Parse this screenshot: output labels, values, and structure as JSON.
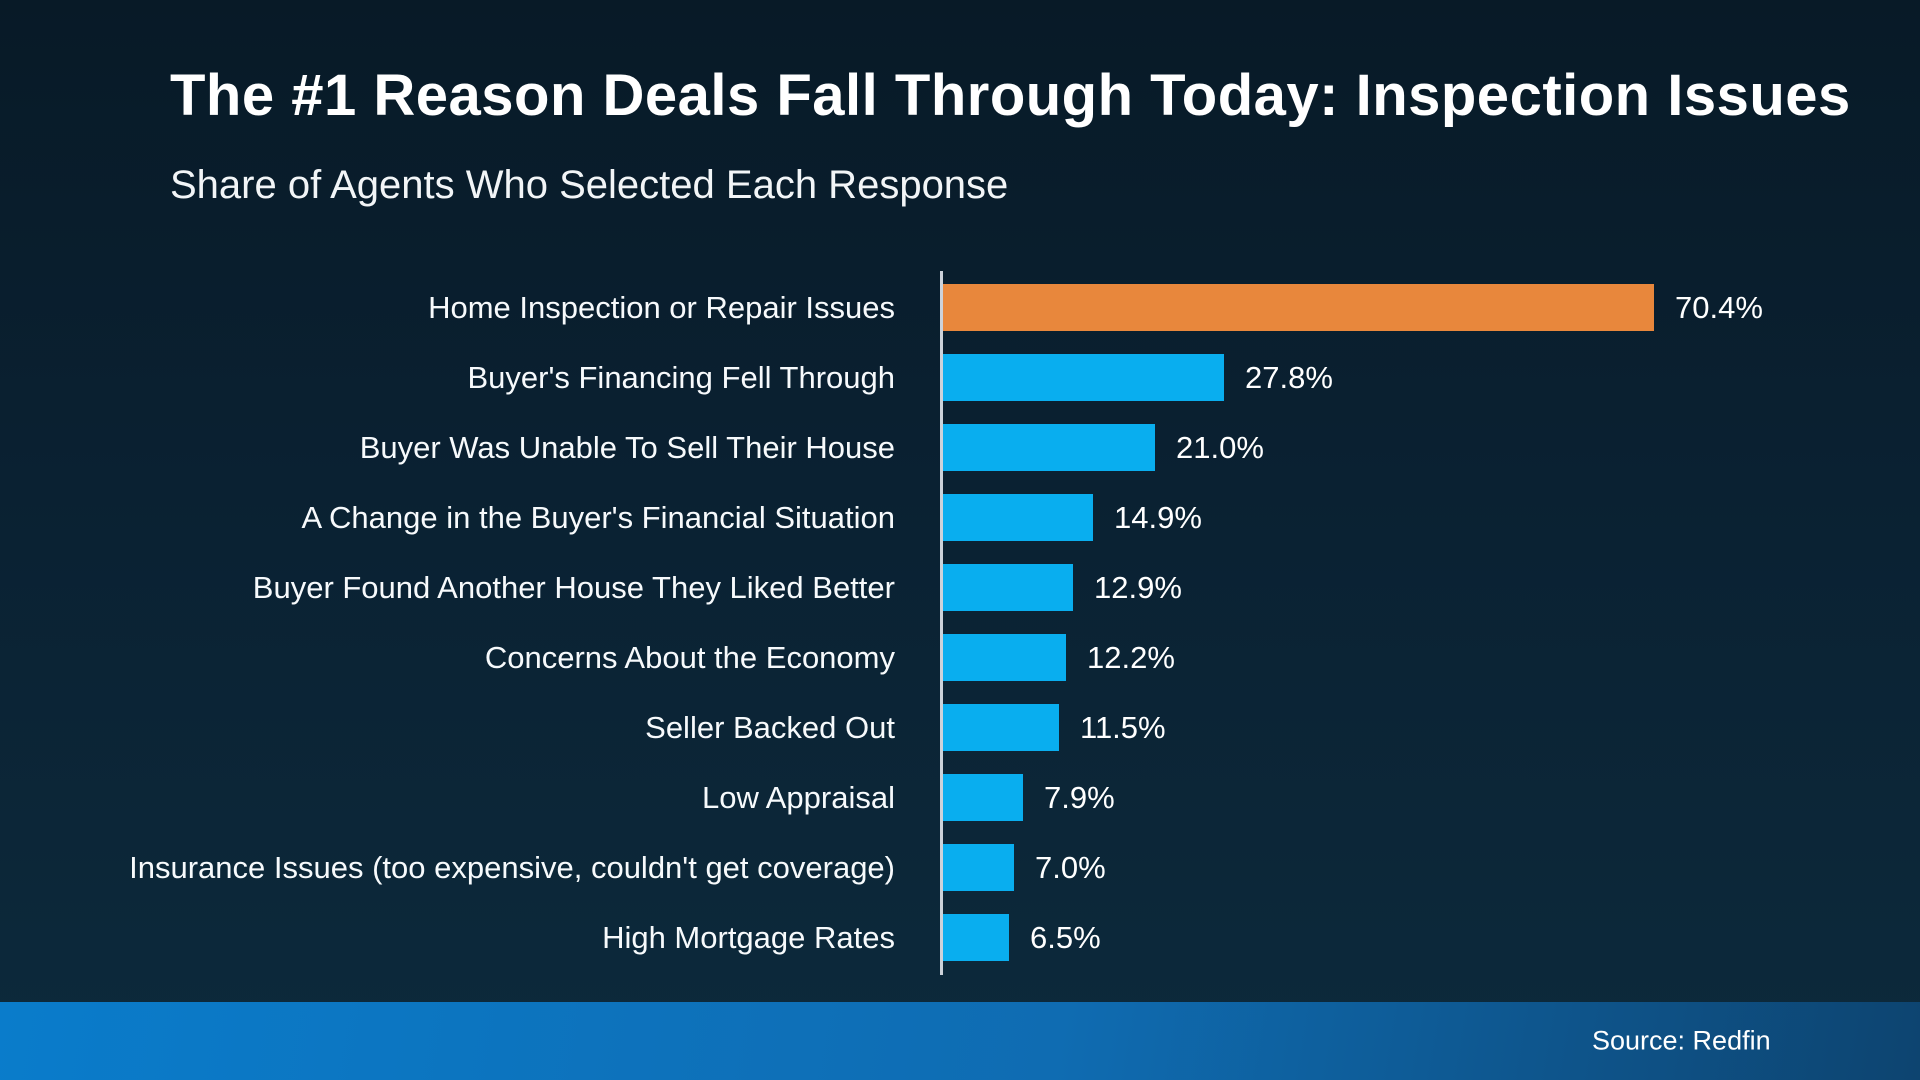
{
  "header": {
    "title": "The #1 Reason Deals Fall Through Today: Inspection Issues",
    "subtitle": "Share of Agents Who Selected Each Response"
  },
  "footer": {
    "source_label": "Source: Redfin"
  },
  "colors": {
    "background_top": "#081a27",
    "background_bottom": "#0d2a3c",
    "bar": "#09aeef",
    "highlight": "#e8873c",
    "axis": "#ccd2da",
    "footer_gradient_left": "#0a7ccb",
    "footer_gradient_right": "#0d4470",
    "text": "#ffffff"
  },
  "chart_data": {
    "type": "bar",
    "orientation": "horizontal",
    "title": "The #1 Reason Deals Fall Through Today: Inspection Issues",
    "subtitle": "Share of Agents Who Selected Each Response",
    "categories": [
      "Home Inspection or Repair Issues",
      "Buyer's Financing Fell Through",
      "Buyer Was Unable To Sell Their House",
      "A Change in the Buyer's Financial Situation",
      "Buyer Found Another House They Liked Better",
      "Concerns About the Economy",
      "Seller Backed Out",
      "Low Appraisal",
      "Insurance Issues (too expensive, couldn't get coverage)",
      "High Mortgage Rates"
    ],
    "values": [
      70.4,
      27.8,
      21.0,
      14.9,
      12.9,
      12.2,
      11.5,
      7.9,
      7.0,
      6.5
    ],
    "value_labels": [
      "70.4%",
      "27.8%",
      "21.0%",
      "14.9%",
      "12.9%",
      "12.2%",
      "11.5%",
      "7.9%",
      "7.0%",
      "6.5%"
    ],
    "highlight_index": 0,
    "xlabel": "",
    "ylabel": "",
    "xlim": [
      0,
      92
    ],
    "grid": false,
    "legend": false,
    "source": "Source: Redfin"
  }
}
